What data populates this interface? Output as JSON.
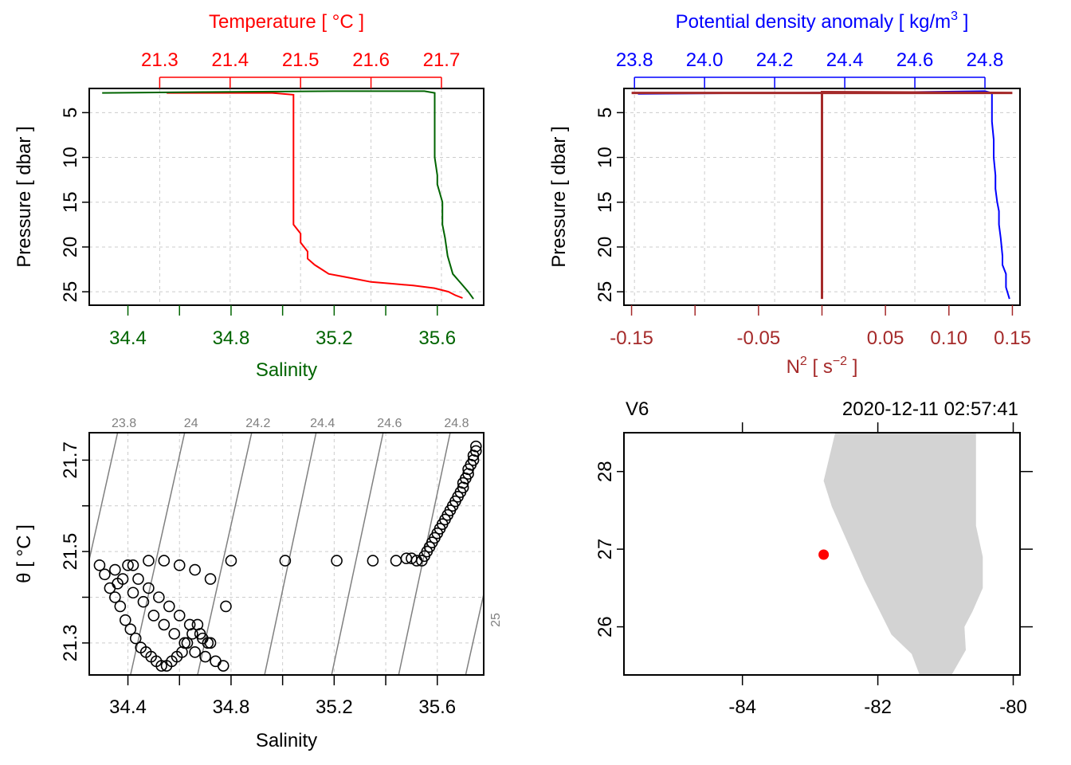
{
  "chart_data": [
    {
      "type": "line",
      "panel": "top-left",
      "ylabel": "Pressure [ dbar ]",
      "ylim": [
        26.5,
        2.3
      ],
      "yticks": [
        5,
        10,
        15,
        20,
        25
      ],
      "grid": true,
      "top_axis": {
        "label": "Temperature [ °C ]",
        "color": "#ff0000",
        "lim": [
          21.2,
          21.76
        ],
        "ticks": [
          "21.3",
          "21.4",
          "21.5",
          "21.6",
          "21.7"
        ]
      },
      "bottom_axis": {
        "label": "Salinity",
        "color": "#006400",
        "lim": [
          34.25,
          35.78
        ],
        "ticks": [
          "34.4",
          "34.8",
          "35.2",
          "35.6"
        ],
        "minor_ticks": [
          34.6,
          35.0,
          35.4
        ]
      },
      "series": [
        {
          "color": "#ff0000",
          "x": [
            21.31,
            21.46,
            21.49,
            21.49,
            21.49,
            21.49,
            21.49,
            21.49,
            21.49,
            21.49,
            21.49,
            21.49,
            21.49,
            21.49,
            21.49,
            21.49,
            21.49,
            21.5,
            21.5,
            21.51,
            21.51,
            21.52,
            21.53,
            21.54,
            21.56,
            21.58,
            21.6,
            21.63,
            21.66,
            21.69,
            21.71,
            21.72,
            21.73
          ],
          "y": [
            2.8,
            2.8,
            3.0,
            4.0,
            6.0,
            8.0,
            9.5,
            10.5,
            11.0,
            12.0,
            12.5,
            12.0,
            13.0,
            14.5,
            15.5,
            16.5,
            17.5,
            18.5,
            19.5,
            20.5,
            21.3,
            22.0,
            22.5,
            23.0,
            23.3,
            23.6,
            23.9,
            24.1,
            24.3,
            24.6,
            25.0,
            25.4,
            25.7
          ]
        },
        {
          "color": "#006400",
          "x": [
            34.3,
            34.7,
            35.2,
            35.55,
            35.59,
            35.59,
            35.59,
            35.59,
            35.59,
            35.6,
            35.6,
            35.61,
            35.62,
            35.62,
            35.62,
            35.63,
            35.64,
            35.66,
            35.69,
            35.72,
            35.74
          ],
          "y": [
            2.8,
            2.7,
            2.6,
            2.6,
            2.8,
            4.0,
            6.0,
            8.0,
            10.0,
            12.0,
            13.0,
            14.0,
            15.0,
            16.0,
            17.5,
            19.0,
            21.0,
            23.0,
            24.0,
            25.0,
            25.8
          ]
        }
      ]
    },
    {
      "type": "line",
      "panel": "top-right",
      "ylabel": "Pressure [ dbar ]",
      "ylim": [
        26.5,
        2.3
      ],
      "yticks": [
        5,
        10,
        15,
        20,
        25
      ],
      "grid": true,
      "top_axis": {
        "label": "Potential density anomaly [ kg/m",
        "label_sup": "3",
        "label_end": " ]",
        "color": "#0000ff",
        "lim": [
          23.77,
          24.9
        ],
        "ticks": [
          "23.8",
          "24.0",
          "24.2",
          "24.4",
          "24.6",
          "24.8"
        ]
      },
      "bottom_axis": {
        "label": "N",
        "label_sup": "2",
        "label_mid": " [ s",
        "label_sup2": "−2",
        "label_end": " ]",
        "color": "#a52a2a",
        "lim": [
          -0.156,
          0.156
        ],
        "ticks": [
          "-0.15",
          "-0.05",
          "0.05",
          "0.10",
          "0.15"
        ],
        "tick_values": [
          -0.15,
          -0.05,
          0.05,
          0.1,
          0.15
        ],
        "minor_ticks": [
          -0.1,
          0.0
        ]
      },
      "series": [
        {
          "color": "#0000ff",
          "x": [
            23.81,
            24.2,
            24.6,
            24.8,
            24.82,
            24.82,
            24.82,
            24.825,
            24.825,
            24.83,
            24.83,
            24.835,
            24.84,
            24.84,
            24.845,
            24.85,
            24.85,
            24.86,
            24.86,
            24.87
          ],
          "y": [
            2.9,
            2.8,
            2.7,
            2.6,
            2.8,
            4.0,
            6.0,
            8.0,
            10.0,
            12.0,
            13.5,
            15.0,
            16.0,
            17.5,
            19.0,
            21.0,
            22.0,
            23.0,
            24.5,
            25.8
          ]
        },
        {
          "color": "#a52a2a",
          "x": [
            -0.15,
            0.15,
            0.0,
            0.0,
            0.0,
            0.0,
            0.0,
            0.0,
            0.0,
            0.0
          ],
          "y": [
            2.8,
            2.8,
            2.7,
            3.0,
            5.0,
            10.0,
            15.0,
            20.0,
            22.0,
            25.8
          ]
        }
      ]
    },
    {
      "type": "scatter",
      "panel": "bottom-left",
      "xlabel": "Salinity",
      "ylabel": "θ [ °C ]",
      "xlim": [
        34.25,
        35.78
      ],
      "ylim": [
        21.23,
        21.76
      ],
      "xticks": [
        "34.4",
        "34.8",
        "35.2",
        "35.6"
      ],
      "xminor": [
        34.6,
        35.0,
        35.4
      ],
      "yticks": [
        "21.3",
        "21.5",
        "21.7"
      ],
      "yminor": [
        21.4,
        21.6
      ],
      "grid": true,
      "isopycnals": {
        "color": "#808080",
        "labels": [
          "23.8",
          "24",
          "24.2",
          "24.4",
          "24.6",
          "24.8",
          "25"
        ],
        "top_s": [
          34.36,
          34.62,
          34.88,
          35.13,
          35.39,
          35.65
        ],
        "bottom_s": [
          34.15,
          34.41,
          34.67,
          34.93,
          35.19,
          35.45,
          35.71
        ],
        "t_top": 21.76,
        "t_bottom": 21.23
      },
      "points": {
        "salinity": [
          34.29,
          34.31,
          34.33,
          34.35,
          34.37,
          34.39,
          34.41,
          34.43,
          34.45,
          34.47,
          34.49,
          34.51,
          34.53,
          34.55,
          34.57,
          34.59,
          34.61,
          34.63,
          34.65,
          34.67,
          34.69,
          34.71,
          34.35,
          34.38,
          34.42,
          34.46,
          34.5,
          34.54,
          34.58,
          34.62,
          34.66,
          34.7,
          34.74,
          34.77,
          34.4,
          34.44,
          34.48,
          34.52,
          34.56,
          34.6,
          34.64,
          34.68,
          34.72,
          34.36,
          34.42,
          34.48,
          34.54,
          34.6,
          34.66,
          34.72,
          34.78,
          34.8,
          35.01,
          35.21,
          35.35,
          35.44,
          35.48,
          35.5,
          35.52,
          35.54,
          35.55,
          35.56,
          35.57,
          35.58,
          35.59,
          35.6,
          35.61,
          35.62,
          35.63,
          35.64,
          35.65,
          35.66,
          35.67,
          35.68,
          35.69,
          35.7,
          35.7,
          35.71,
          35.72,
          35.72,
          35.73,
          35.74,
          35.74,
          35.75,
          35.75
        ],
        "theta": [
          21.47,
          21.45,
          21.42,
          21.4,
          21.38,
          21.35,
          21.33,
          21.31,
          21.29,
          21.28,
          21.27,
          21.26,
          21.25,
          21.25,
          21.26,
          21.27,
          21.28,
          21.3,
          21.32,
          21.34,
          21.31,
          21.3,
          21.46,
          21.44,
          21.41,
          21.39,
          21.36,
          21.34,
          21.32,
          21.3,
          21.28,
          21.27,
          21.26,
          21.25,
          21.47,
          21.44,
          21.42,
          21.4,
          21.38,
          21.36,
          21.34,
          21.32,
          21.3,
          21.43,
          21.47,
          21.48,
          21.48,
          21.47,
          21.46,
          21.44,
          21.38,
          21.48,
          21.48,
          21.48,
          21.48,
          21.48,
          21.485,
          21.485,
          21.48,
          21.48,
          21.49,
          21.5,
          21.51,
          21.52,
          21.53,
          21.54,
          21.55,
          21.56,
          21.57,
          21.58,
          21.59,
          21.6,
          21.61,
          21.62,
          21.63,
          21.64,
          21.65,
          21.66,
          21.67,
          21.68,
          21.69,
          21.7,
          21.71,
          21.72,
          21.73
        ]
      }
    },
    {
      "type": "map",
      "panel": "bottom-right",
      "station": "V6",
      "time": "2020-12-11 02:57:41",
      "xlim": [
        -85.75,
        -79.9
      ],
      "ylim": [
        25.38,
        28.5
      ],
      "xticks": [
        "-84",
        "-82",
        "-80"
      ],
      "yticks": [
        "26",
        "27",
        "28"
      ],
      "land_color": "#d3d3d3",
      "station_color": "#ff0000",
      "station_lon": -82.8,
      "station_lat": 26.93,
      "land": {
        "lon": [
          -82.63,
          -82.8,
          -82.68,
          -82.2,
          -81.8,
          -81.5,
          -81.37,
          -80.93,
          -80.7,
          -80.72,
          -80.6,
          -80.45,
          -80.45,
          -80.55,
          -80.55,
          -82.63
        ],
        "lat": [
          28.5,
          27.88,
          27.55,
          26.6,
          25.9,
          25.65,
          25.35,
          25.35,
          25.7,
          26.0,
          26.2,
          26.5,
          26.9,
          27.3,
          28.5,
          28.5
        ]
      }
    }
  ]
}
